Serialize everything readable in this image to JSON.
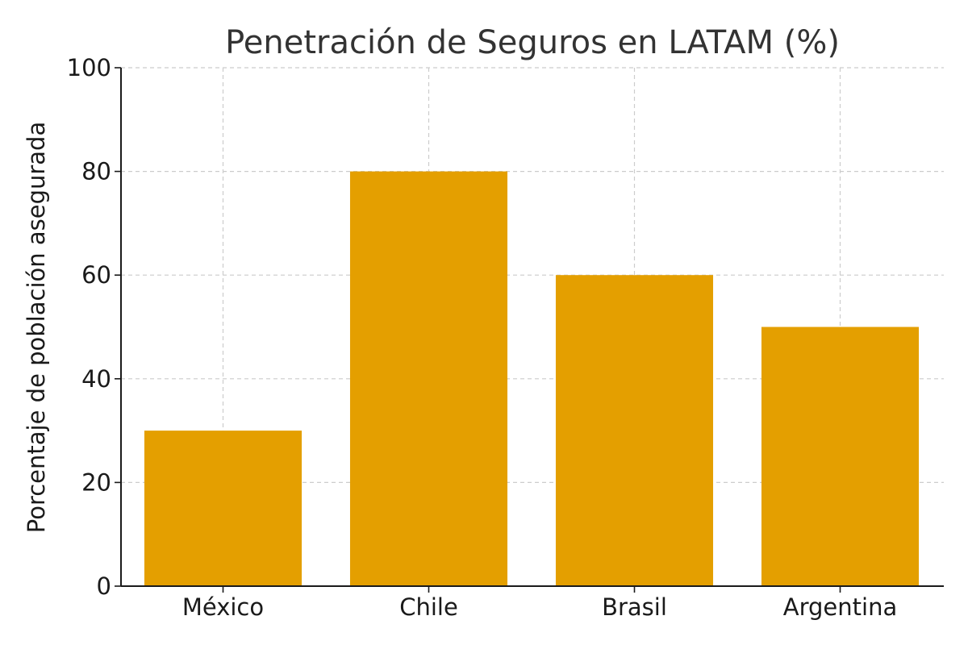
{
  "chart_data": {
    "type": "bar",
    "title": "Penetración de Seguros en LATAM (%)",
    "xlabel": "",
    "ylabel": "Porcentaje de población asegurada",
    "categories": [
      "México",
      "Chile",
      "Brasil",
      "Argentina"
    ],
    "values": [
      30,
      80,
      60,
      50
    ],
    "ylim": [
      0,
      100
    ],
    "yticks": [
      "0",
      "20",
      "40",
      "60",
      "80",
      "100"
    ],
    "grid": true,
    "bar_color": "#E49F00"
  }
}
